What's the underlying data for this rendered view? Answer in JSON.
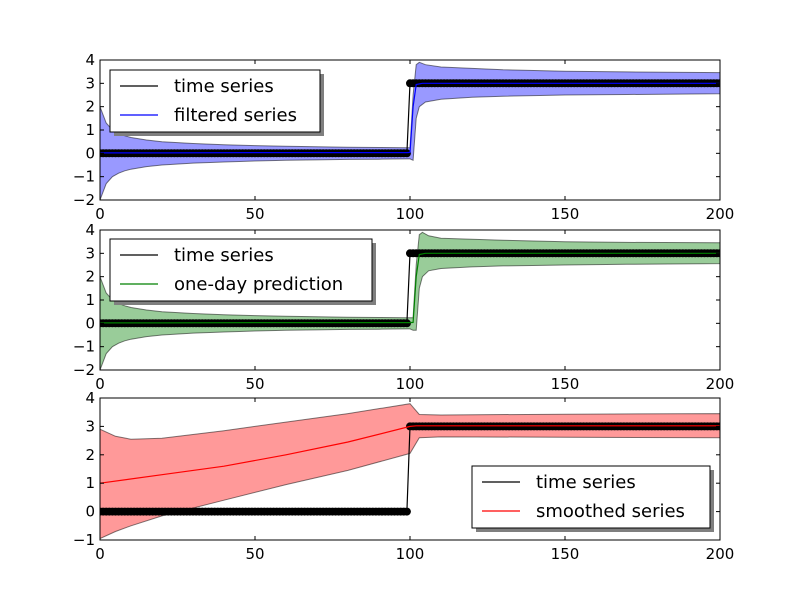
{
  "chart_data": [
    {
      "type": "line",
      "title": "",
      "xlabel": "",
      "ylabel": "",
      "xlim": [
        0,
        200
      ],
      "ylim": [
        -2,
        4
      ],
      "xticks": [
        "0",
        "50",
        "100",
        "150",
        "200"
      ],
      "yticks": [
        "−2",
        "−1",
        "0",
        "1",
        "2",
        "3",
        "4"
      ],
      "ytick_values": [
        -2,
        -1,
        0,
        1,
        2,
        3,
        4
      ],
      "grid": false,
      "legend_position": "top-left",
      "series": [
        {
          "name": "time series",
          "color": "#000000",
          "style": "step-with-markers",
          "x": [
            0,
            99,
            100,
            200
          ],
          "y": [
            0,
            0,
            3,
            3
          ]
        },
        {
          "name": "filtered series",
          "color": "#0000ff",
          "x": [
            0,
            5,
            20,
            50,
            99,
            100,
            101,
            102,
            104,
            110,
            120,
            150,
            200
          ],
          "y": [
            0.02,
            0.02,
            0.02,
            0.03,
            0.03,
            0.04,
            2.0,
            2.95,
            3.0,
            3.0,
            3.0,
            3.0,
            3.0
          ]
        },
        {
          "name": "confidence band",
          "color": "#0000ff",
          "kind": "band",
          "x": [
            0,
            2,
            4,
            6,
            8,
            10,
            15,
            20,
            30,
            40,
            50,
            60,
            70,
            80,
            90,
            99,
            100,
            101,
            102,
            103,
            105,
            110,
            120,
            130,
            150,
            170,
            200
          ],
          "upper": [
            2.0,
            1.3,
            1.0,
            0.85,
            0.75,
            0.68,
            0.57,
            0.5,
            0.42,
            0.37,
            0.33,
            0.3,
            0.28,
            0.26,
            0.25,
            0.24,
            0.24,
            2.5,
            3.8,
            3.9,
            3.8,
            3.7,
            3.64,
            3.58,
            3.52,
            3.49,
            3.46
          ],
          "lower": [
            -2.0,
            -1.3,
            -1.0,
            -0.85,
            -0.75,
            -0.68,
            -0.57,
            -0.5,
            -0.42,
            -0.37,
            -0.33,
            -0.3,
            -0.28,
            -0.26,
            -0.25,
            -0.24,
            -0.24,
            -0.3,
            1.5,
            2.0,
            2.2,
            2.32,
            2.4,
            2.45,
            2.5,
            2.52,
            2.55
          ]
        }
      ],
      "legend": [
        "time series",
        "filtered series"
      ]
    },
    {
      "type": "line",
      "title": "",
      "xlabel": "",
      "ylabel": "",
      "xlim": [
        0,
        200
      ],
      "ylim": [
        -2,
        4
      ],
      "xticks": [
        "0",
        "50",
        "100",
        "150",
        "200"
      ],
      "yticks": [
        "−2",
        "−1",
        "0",
        "1",
        "2",
        "3",
        "4"
      ],
      "ytick_values": [
        -2,
        -1,
        0,
        1,
        2,
        3,
        4
      ],
      "grid": false,
      "legend_position": "top-left",
      "series": [
        {
          "name": "time series",
          "color": "#000000",
          "style": "step-with-markers",
          "x": [
            0,
            99,
            100,
            200
          ],
          "y": [
            0,
            0,
            3,
            3
          ]
        },
        {
          "name": "one-day prediction",
          "color": "#008000",
          "x": [
            0,
            20,
            50,
            99,
            100,
            101,
            102,
            103,
            105,
            110,
            150,
            200
          ],
          "y": [
            0.02,
            0.02,
            0.03,
            0.03,
            0.03,
            0.04,
            2.0,
            2.95,
            3.0,
            3.0,
            3.0,
            3.0
          ]
        },
        {
          "name": "confidence band",
          "color": "#008000",
          "kind": "band",
          "x": [
            0,
            2,
            4,
            6,
            8,
            10,
            15,
            20,
            30,
            40,
            50,
            60,
            70,
            80,
            90,
            99,
            100,
            101,
            102,
            103,
            104,
            106,
            110,
            120,
            130,
            150,
            170,
            200
          ],
          "upper": [
            2.0,
            1.3,
            1.0,
            0.85,
            0.75,
            0.68,
            0.57,
            0.5,
            0.42,
            0.37,
            0.33,
            0.3,
            0.28,
            0.26,
            0.25,
            0.24,
            0.24,
            0.24,
            2.5,
            3.8,
            3.9,
            3.75,
            3.65,
            3.6,
            3.56,
            3.5,
            3.47,
            3.45
          ],
          "lower": [
            -2.0,
            -1.3,
            -1.0,
            -0.85,
            -0.75,
            -0.68,
            -0.57,
            -0.5,
            -0.42,
            -0.37,
            -0.33,
            -0.3,
            -0.28,
            -0.26,
            -0.25,
            -0.24,
            -0.24,
            -0.3,
            -0.3,
            1.5,
            2.0,
            2.25,
            2.35,
            2.42,
            2.46,
            2.5,
            2.53,
            2.56
          ]
        }
      ],
      "legend": [
        "time series",
        "one-day prediction"
      ]
    },
    {
      "type": "line",
      "title": "",
      "xlabel": "",
      "ylabel": "",
      "xlim": [
        0,
        200
      ],
      "ylim": [
        -1,
        4
      ],
      "xticks": [
        "0",
        "50",
        "100",
        "150",
        "200"
      ],
      "yticks": [
        "−1",
        "0",
        "1",
        "2",
        "3",
        "4"
      ],
      "ytick_values": [
        -1,
        0,
        1,
        2,
        3,
        4
      ],
      "grid": false,
      "legend_position": "lower-right",
      "series": [
        {
          "name": "time series",
          "color": "#000000",
          "style": "step-with-markers",
          "x": [
            0,
            99,
            100,
            200
          ],
          "y": [
            0,
            0,
            3,
            3
          ]
        },
        {
          "name": "smoothed series",
          "color": "#ff0000",
          "x": [
            0,
            20,
            40,
            60,
            80,
            100,
            102,
            110,
            150,
            200
          ],
          "y": [
            1.0,
            1.3,
            1.6,
            2.0,
            2.45,
            3.0,
            3.02,
            3.02,
            3.02,
            3.02
          ]
        },
        {
          "name": "confidence band",
          "color": "#ff0000",
          "kind": "band",
          "x": [
            0,
            5,
            10,
            20,
            40,
            60,
            80,
            100,
            103,
            110,
            150,
            200
          ],
          "upper": [
            2.9,
            2.65,
            2.55,
            2.58,
            2.85,
            3.15,
            3.45,
            3.8,
            3.42,
            3.4,
            3.43,
            3.45
          ],
          "lower": [
            -0.95,
            -0.7,
            -0.5,
            -0.15,
            0.4,
            0.95,
            1.45,
            2.05,
            2.6,
            2.63,
            2.62,
            2.6
          ]
        }
      ],
      "legend": [
        "time series",
        "smoothed series"
      ]
    }
  ]
}
